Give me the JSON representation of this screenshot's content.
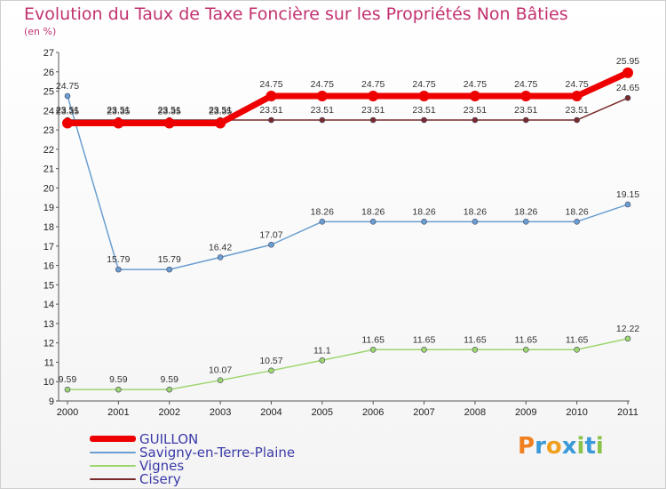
{
  "header": {
    "title": "Evolution du Taux de Taxe Foncière sur les Propriétés Non Bâties",
    "subtitle": "(en %)"
  },
  "logo": {
    "text": "Proxiti"
  },
  "chart_data": {
    "type": "line",
    "title": "Evolution du Taux de Taxe Foncière sur les Propriétés Non Bâties",
    "ylabel": "(en %)",
    "xlabel": "",
    "ylim": [
      9,
      27
    ],
    "grid": false,
    "legend_position": "bottom-left",
    "categories": [
      "2000",
      "2001",
      "2002",
      "2003",
      "2004",
      "2005",
      "2006",
      "2007",
      "2008",
      "2009",
      "2010",
      "2011"
    ],
    "series": [
      {
        "name": "GUILLON",
        "color": "#ee0000",
        "values": [
          23.35,
          23.35,
          23.35,
          23.35,
          24.75,
          24.75,
          24.75,
          24.75,
          24.75,
          24.75,
          24.75,
          25.95
        ],
        "labels": [
          "23.35",
          "23.35",
          "23.35",
          "23.35",
          "24.75",
          "24.75",
          "24.75",
          "24.75",
          "24.75",
          "24.75",
          "24.75",
          "25.95"
        ]
      },
      {
        "name": "Savigny-en-Terre-Plaine",
        "color": "#6a9ed0",
        "values": [
          24.75,
          15.79,
          15.79,
          16.42,
          17.07,
          18.26,
          18.26,
          18.26,
          18.26,
          18.26,
          18.26,
          19.15
        ],
        "labels": [
          "24.75",
          "15.79",
          "15.79",
          "16.42",
          "17.07",
          "18.26",
          "18.26",
          "18.26",
          "18.26",
          "18.26",
          "18.26",
          "19.15"
        ]
      },
      {
        "name": "Vignes",
        "color": "#9ed66e",
        "values": [
          9.59,
          9.59,
          9.59,
          10.07,
          10.57,
          11.1,
          11.65,
          11.65,
          11.65,
          11.65,
          11.65,
          12.22
        ],
        "labels": [
          "9.59",
          "9.59",
          "9.59",
          "10.07",
          "10.57",
          "11.1",
          "11.65",
          "11.65",
          "11.65",
          "11.65",
          "11.65",
          "12.22"
        ]
      },
      {
        "name": "Cisery",
        "color": "#7a2a2a",
        "values": [
          23.51,
          23.51,
          23.51,
          23.51,
          23.51,
          23.51,
          23.51,
          23.51,
          23.51,
          23.51,
          23.51,
          24.65
        ],
        "labels": [
          "23.51",
          "23.51",
          "23.51",
          "23.51",
          "23.51",
          "23.51",
          "23.51",
          "23.51",
          "23.51",
          "23.51",
          "23.51",
          "24.65"
        ]
      }
    ]
  }
}
